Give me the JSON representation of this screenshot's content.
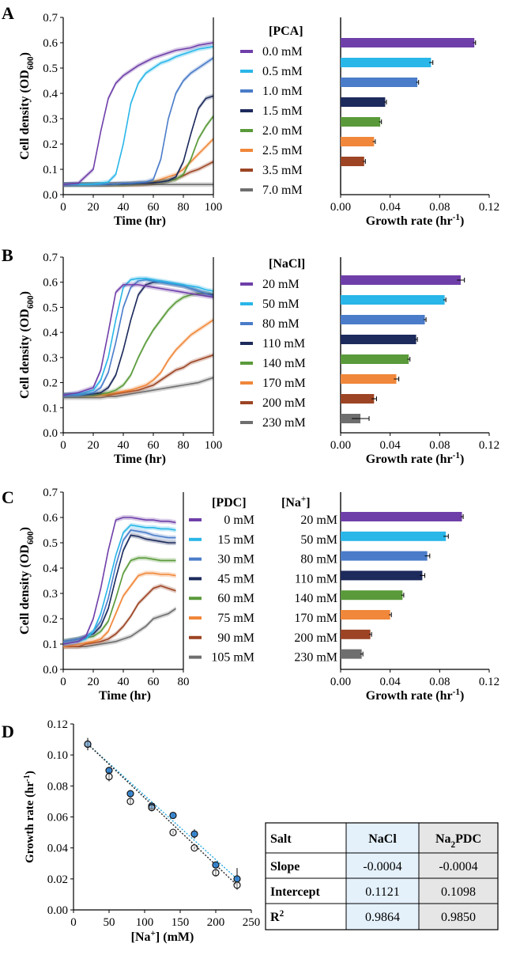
{
  "panels": {
    "A": {
      "letter": "A",
      "legend_title": "[PCA]",
      "legend_items": [
        "0.0 mM",
        "0.5 mM",
        "1.0 mM",
        "1.5 mM",
        "2.0 mM",
        "2.5 mM",
        "3.5 mM",
        "7.0 mM"
      ]
    },
    "B": {
      "letter": "B",
      "legend_title": "[NaCl]",
      "legend_items": [
        "20 mM",
        "50 mM",
        "80 mM",
        "110 mM",
        "140 mM",
        "170 mM",
        "200 mM",
        "230 mM"
      ]
    },
    "C": {
      "letter": "C",
      "legend_title_1": "[PDC]",
      "legend_title_2": "[Na+]",
      "legend_items_pdc": [
        "0 mM",
        "15 mM",
        "30 mM",
        "45 mM",
        "60 mM",
        "75 mM",
        "90 mM",
        "105 mM"
      ],
      "legend_items_na": [
        "20 mM",
        "50 mM",
        "80 mM",
        "110 mM",
        "140 mM",
        "170 mM",
        "200 mM",
        "230 mM"
      ]
    },
    "D": {
      "letter": "D"
    }
  },
  "series_colors": [
    "#6f3fa9",
    "#29b6e8",
    "#4a7cc9",
    "#1c2a5c",
    "#5a9a3a",
    "#f0873a",
    "#9c4424",
    "#6e6e6e"
  ],
  "table": {
    "headers": [
      "Salt",
      "NaCl",
      "Na2PDC"
    ],
    "rows": [
      [
        "Slope",
        "-0.0004",
        "-0.0004"
      ],
      [
        "Intercept",
        "0.1121",
        "0.1098"
      ],
      [
        "R2",
        "0.9864",
        "0.9850"
      ]
    ]
  },
  "chart_data": [
    {
      "id": "A-growth",
      "type": "line",
      "xlabel": "Time (hr)",
      "ylabel": "Cell density (OD600)",
      "xlim": [
        0,
        100
      ],
      "ylim": [
        0,
        0.7
      ],
      "xticks": [
        0,
        20,
        40,
        60,
        80,
        100
      ],
      "yticks": [
        0,
        0.1,
        0.2,
        0.3,
        0.4,
        0.5,
        0.6,
        0.7
      ],
      "x": [
        0,
        10,
        20,
        25,
        30,
        35,
        40,
        45,
        50,
        55,
        60,
        65,
        70,
        75,
        80,
        85,
        90,
        95,
        100
      ],
      "series": [
        {
          "name": "0.0 mM",
          "values": [
            0.04,
            0.045,
            0.1,
            0.25,
            0.38,
            0.44,
            0.47,
            0.49,
            0.51,
            0.525,
            0.54,
            0.55,
            0.56,
            0.57,
            0.575,
            0.58,
            0.59,
            0.595,
            0.6
          ]
        },
        {
          "name": "0.5 mM",
          "values": [
            0.04,
            0.04,
            0.042,
            0.045,
            0.05,
            0.08,
            0.2,
            0.36,
            0.44,
            0.48,
            0.5,
            0.52,
            0.53,
            0.545,
            0.555,
            0.565,
            0.575,
            0.58,
            0.585
          ]
        },
        {
          "name": "1.0 mM",
          "values": [
            0.04,
            0.04,
            0.04,
            0.04,
            0.042,
            0.042,
            0.045,
            0.045,
            0.048,
            0.05,
            0.06,
            0.14,
            0.3,
            0.4,
            0.45,
            0.48,
            0.5,
            0.52,
            0.54
          ]
        },
        {
          "name": "1.5 mM",
          "values": [
            0.04,
            0.04,
            0.04,
            0.04,
            0.04,
            0.042,
            0.042,
            0.043,
            0.045,
            0.045,
            0.047,
            0.05,
            0.055,
            0.07,
            0.13,
            0.24,
            0.34,
            0.38,
            0.39
          ]
        },
        {
          "name": "2.0 mM",
          "values": [
            0.04,
            0.04,
            0.04,
            0.04,
            0.04,
            0.04,
            0.04,
            0.042,
            0.043,
            0.045,
            0.048,
            0.05,
            0.055,
            0.06,
            0.08,
            0.14,
            0.22,
            0.27,
            0.31
          ]
        },
        {
          "name": "2.5 mM",
          "values": [
            0.04,
            0.04,
            0.04,
            0.04,
            0.04,
            0.04,
            0.04,
            0.042,
            0.044,
            0.046,
            0.05,
            0.06,
            0.07,
            0.08,
            0.1,
            0.13,
            0.16,
            0.19,
            0.22
          ]
        },
        {
          "name": "3.5 mM",
          "values": [
            0.04,
            0.04,
            0.04,
            0.04,
            0.04,
            0.04,
            0.04,
            0.04,
            0.04,
            0.042,
            0.045,
            0.05,
            0.055,
            0.062,
            0.075,
            0.09,
            0.1,
            0.115,
            0.13
          ]
        },
        {
          "name": "7.0 mM",
          "values": [
            0.04,
            0.04,
            0.04,
            0.04,
            0.04,
            0.04,
            0.04,
            0.04,
            0.04,
            0.04,
            0.04,
            0.04,
            0.04,
            0.04,
            0.04,
            0.04,
            0.04,
            0.04,
            0.04
          ]
        }
      ]
    },
    {
      "id": "A-rate",
      "type": "bar",
      "xlabel": "Growth rate (hr-1)",
      "xlim": [
        0,
        0.12
      ],
      "xticks": [
        0.0,
        0.04,
        0.08,
        0.12
      ],
      "categories": [
        "0.0 mM",
        "0.5 mM",
        "1.0 mM",
        "1.5 mM",
        "2.0 mM",
        "2.5 mM",
        "3.5 mM",
        "7.0 mM"
      ],
      "values": [
        0.108,
        0.073,
        0.062,
        0.036,
        0.032,
        0.027,
        0.019,
        0
      ],
      "errors": [
        0.001,
        0.0015,
        0.001,
        0.001,
        0.001,
        0.001,
        0.001,
        0
      ]
    },
    {
      "id": "B-growth",
      "type": "line",
      "xlabel": "Time (hr)",
      "ylabel": "Cell density (OD600)",
      "xlim": [
        0,
        100
      ],
      "ylim": [
        0,
        0.7
      ],
      "xticks": [
        0,
        20,
        40,
        60,
        80,
        100
      ],
      "yticks": [
        0,
        0.1,
        0.2,
        0.3,
        0.4,
        0.5,
        0.6,
        0.7
      ],
      "x": [
        0,
        10,
        20,
        25,
        30,
        35,
        40,
        45,
        50,
        55,
        60,
        65,
        70,
        75,
        80,
        85,
        90,
        95,
        100
      ],
      "series": [
        {
          "name": "20 mM",
          "values": [
            0.15,
            0.16,
            0.18,
            0.25,
            0.4,
            0.56,
            0.59,
            0.59,
            0.59,
            0.585,
            0.58,
            0.575,
            0.57,
            0.565,
            0.56,
            0.555,
            0.55,
            0.545,
            0.54
          ]
        },
        {
          "name": "50 mM",
          "values": [
            0.15,
            0.155,
            0.17,
            0.21,
            0.3,
            0.45,
            0.58,
            0.61,
            0.615,
            0.615,
            0.61,
            0.605,
            0.6,
            0.595,
            0.59,
            0.585,
            0.58,
            0.57,
            0.565
          ]
        },
        {
          "name": "80 mM",
          "values": [
            0.15,
            0.15,
            0.16,
            0.18,
            0.24,
            0.36,
            0.5,
            0.58,
            0.605,
            0.61,
            0.605,
            0.6,
            0.595,
            0.59,
            0.585,
            0.575,
            0.565,
            0.555,
            0.545
          ]
        },
        {
          "name": "110 mM",
          "values": [
            0.15,
            0.15,
            0.155,
            0.16,
            0.18,
            0.23,
            0.33,
            0.45,
            0.55,
            0.59,
            0.6,
            0.6,
            0.595,
            0.59,
            0.585,
            0.575,
            0.565,
            0.555,
            0.55
          ]
        },
        {
          "name": "140 mM",
          "values": [
            0.15,
            0.15,
            0.15,
            0.155,
            0.16,
            0.17,
            0.19,
            0.23,
            0.3,
            0.36,
            0.41,
            0.45,
            0.49,
            0.52,
            0.54,
            0.55,
            0.555,
            0.555,
            0.55
          ]
        },
        {
          "name": "170 mM",
          "values": [
            0.15,
            0.15,
            0.15,
            0.15,
            0.155,
            0.16,
            0.165,
            0.17,
            0.18,
            0.19,
            0.21,
            0.24,
            0.29,
            0.33,
            0.36,
            0.39,
            0.41,
            0.43,
            0.45
          ]
        },
        {
          "name": "200 mM",
          "values": [
            0.15,
            0.15,
            0.15,
            0.15,
            0.15,
            0.155,
            0.16,
            0.165,
            0.17,
            0.18,
            0.19,
            0.21,
            0.23,
            0.25,
            0.26,
            0.28,
            0.29,
            0.3,
            0.31
          ]
        },
        {
          "name": "230 mM",
          "values": [
            0.14,
            0.14,
            0.14,
            0.14,
            0.145,
            0.145,
            0.15,
            0.155,
            0.16,
            0.165,
            0.17,
            0.175,
            0.18,
            0.185,
            0.19,
            0.195,
            0.2,
            0.21,
            0.22
          ]
        }
      ]
    },
    {
      "id": "B-rate",
      "type": "bar",
      "xlabel": "Growth rate (hr-1)",
      "xlim": [
        0,
        0.12
      ],
      "xticks": [
        0.0,
        0.04,
        0.08,
        0.12
      ],
      "categories": [
        "20 mM",
        "50 mM",
        "80 mM",
        "110 mM",
        "140 mM",
        "170 mM",
        "200 mM",
        "230 mM"
      ],
      "values": [
        0.097,
        0.084,
        0.068,
        0.061,
        0.055,
        0.045,
        0.027,
        0.016
      ],
      "errors": [
        0.003,
        0.001,
        0.001,
        0.001,
        0.001,
        0.002,
        0.002,
        0.007
      ]
    },
    {
      "id": "C-growth",
      "type": "line",
      "xlabel": "Time (hr)",
      "ylabel": "Cell density (OD600)",
      "xlim": [
        0,
        80
      ],
      "ylim": [
        0,
        0.7
      ],
      "xticks": [
        0,
        20,
        40,
        60,
        80
      ],
      "yticks": [
        0,
        0.1,
        0.2,
        0.3,
        0.4,
        0.5,
        0.6,
        0.7
      ],
      "x": [
        0,
        10,
        15,
        20,
        25,
        30,
        35,
        40,
        45,
        50,
        55,
        60,
        65,
        70,
        75
      ],
      "series": [
        {
          "name": "0 mM",
          "values": [
            0.1,
            0.11,
            0.13,
            0.2,
            0.32,
            0.47,
            0.59,
            0.6,
            0.6,
            0.595,
            0.59,
            0.59,
            0.585,
            0.585,
            0.58
          ]
        },
        {
          "name": "15 mM",
          "values": [
            0.1,
            0.11,
            0.12,
            0.15,
            0.22,
            0.33,
            0.45,
            0.54,
            0.57,
            0.565,
            0.56,
            0.56,
            0.555,
            0.555,
            0.55
          ]
        },
        {
          "name": "30 mM",
          "values": [
            0.11,
            0.12,
            0.13,
            0.15,
            0.19,
            0.28,
            0.41,
            0.51,
            0.55,
            0.545,
            0.54,
            0.53,
            0.525,
            0.52,
            0.52
          ]
        },
        {
          "name": "45 mM",
          "values": [
            0.11,
            0.12,
            0.13,
            0.14,
            0.17,
            0.24,
            0.36,
            0.47,
            0.53,
            0.525,
            0.515,
            0.51,
            0.505,
            0.5,
            0.5
          ]
        },
        {
          "name": "60 mM",
          "values": [
            0.11,
            0.12,
            0.125,
            0.13,
            0.15,
            0.19,
            0.28,
            0.38,
            0.43,
            0.44,
            0.44,
            0.435,
            0.43,
            0.43,
            0.43
          ]
        },
        {
          "name": "75 mM",
          "values": [
            0.09,
            0.1,
            0.105,
            0.11,
            0.12,
            0.15,
            0.22,
            0.29,
            0.33,
            0.37,
            0.38,
            0.38,
            0.375,
            0.375,
            0.37
          ]
        },
        {
          "name": "90 mM",
          "values": [
            0.09,
            0.09,
            0.1,
            0.105,
            0.11,
            0.12,
            0.14,
            0.17,
            0.21,
            0.26,
            0.29,
            0.32,
            0.33,
            0.32,
            0.31
          ]
        },
        {
          "name": "105 mM",
          "values": [
            0.09,
            0.09,
            0.09,
            0.095,
            0.1,
            0.105,
            0.11,
            0.12,
            0.13,
            0.15,
            0.17,
            0.2,
            0.21,
            0.22,
            0.24
          ]
        }
      ]
    },
    {
      "id": "C-rate",
      "type": "bar",
      "xlabel": "Growth rate (hr-1)",
      "xlim": [
        0,
        0.12
      ],
      "xticks": [
        0.0,
        0.04,
        0.08,
        0.12
      ],
      "categories": [
        "0 mM / 20 mM",
        "15 mM / 50 mM",
        "30 mM / 80 mM",
        "45 mM / 110 mM",
        "60 mM / 140 mM",
        "75 mM / 170 mM",
        "90 mM / 200 mM",
        "105 mM / 230 mM"
      ],
      "values": [
        0.098,
        0.085,
        0.07,
        0.066,
        0.05,
        0.04,
        0.024,
        0.017
      ],
      "errors": [
        0.001,
        0.002,
        0.002,
        0.002,
        0.001,
        0.001,
        0.001,
        0.001
      ]
    },
    {
      "id": "D",
      "type": "scatter",
      "xlabel": "[Na+] (mM)",
      "ylabel": "Growth rate (hr-1)",
      "xlim": [
        0,
        250
      ],
      "ylim": [
        0,
        0.12
      ],
      "xticks": [
        0,
        50,
        100,
        150,
        200,
        250
      ],
      "yticks": [
        0.0,
        0.02,
        0.04,
        0.06,
        0.08,
        0.1,
        0.12
      ],
      "series": [
        {
          "x": [
            20,
            50,
            80,
            110,
            140,
            170,
            200,
            230
          ],
          "values": [
            0.107,
            0.09,
            0.075,
            0.067,
            0.061,
            0.049,
            0.029,
            0.02
          ],
          "errors": [
            0.002,
            0.002,
            0.002,
            0.002,
            0.001,
            0.003,
            0.002,
            0.007
          ]
        },
        {
          "x": [
            20,
            50,
            80,
            110,
            140,
            170,
            200,
            230
          ],
          "values": [
            0.107,
            0.086,
            0.07,
            0.066,
            0.05,
            0.04,
            0.024,
            0.016
          ],
          "errors": [
            0.004,
            0.003,
            0.002,
            0.002,
            0.001,
            0.001,
            0.002,
            0.002
          ]
        }
      ]
    }
  ]
}
